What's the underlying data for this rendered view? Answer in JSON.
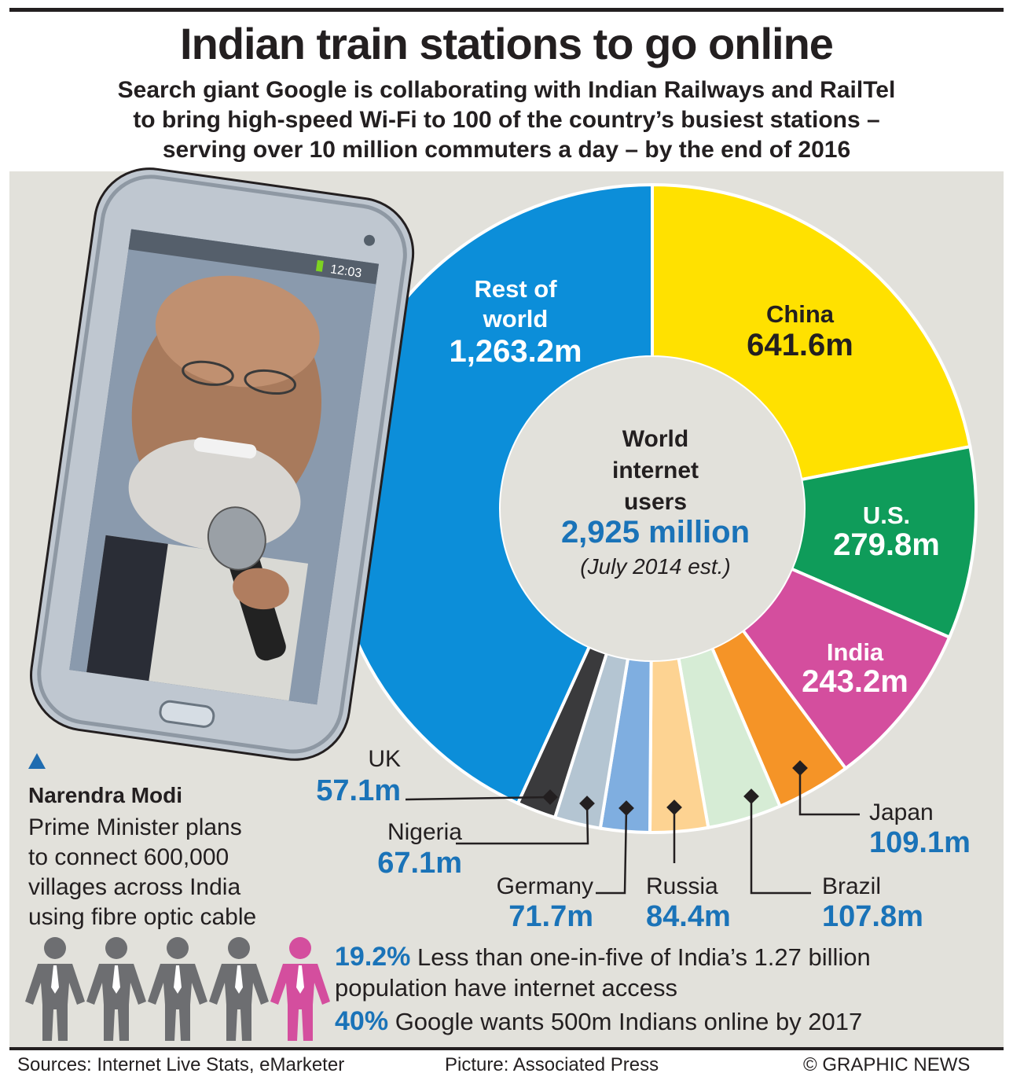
{
  "title": "Indian train stations to go online",
  "subtitle": [
    "Search giant Google is collaborating with Indian Railways and RailTel",
    "to bring high-speed Wi-Fi to 100 of the country’s busiest stations –",
    "serving over 10 million commuters a day – by the end of 2016"
  ],
  "phone": {
    "clock": "12:03"
  },
  "chart_data": {
    "type": "pie",
    "center_label": [
      "World",
      "internet",
      "users"
    ],
    "center_total": "2,925 million",
    "center_note": "(July 2014 est.)",
    "total": 2925,
    "slices": [
      {
        "name": "China",
        "value": 641.6,
        "label": "641.6m",
        "color": "#ffe100"
      },
      {
        "name": "U.S.",
        "value": 279.8,
        "label": "279.8m",
        "color": "#0f9c5a"
      },
      {
        "name": "India",
        "value": 243.2,
        "label": "243.2m",
        "color": "#d44e9e"
      },
      {
        "name": "Japan",
        "value": 109.1,
        "label": "109.1m",
        "color": "#f59427"
      },
      {
        "name": "Brazil",
        "value": 107.8,
        "label": "107.8m",
        "color": "#d6ecd5"
      },
      {
        "name": "Russia",
        "value": 84.4,
        "label": "84.4m",
        "color": "#fdd392"
      },
      {
        "name": "Germany",
        "value": 71.7,
        "label": "71.7m",
        "color": "#7faee0"
      },
      {
        "name": "Nigeria",
        "value": 67.1,
        "label": "67.1m",
        "color": "#b4c5d2"
      },
      {
        "name": "UK",
        "value": 57.1,
        "label": "57.1m",
        "color": "#3a3a3c"
      },
      {
        "name": "Rest of world",
        "value": 1263.2,
        "label": "1,263.2m",
        "color": "#0c8ed9"
      }
    ]
  },
  "labels": {
    "rest": [
      "Rest of",
      "world"
    ],
    "china": "China",
    "us": "U.S.",
    "india": "India",
    "uk": "UK",
    "nigeria": "Nigeria",
    "germany": "Germany",
    "russia": "Russia",
    "brazil": "Brazil",
    "japan": "Japan"
  },
  "modi": {
    "name": "Narendra Modi",
    "desc": [
      "Prime Minister plans",
      "to connect 600,000",
      "villages across India",
      "using fibre optic cable"
    ]
  },
  "stats": [
    {
      "pct": "19.2%",
      "text": "Less than one-in-five of India’s 1.27 billion",
      "text2": "population have internet access"
    },
    {
      "pct": "40%",
      "text": "Google wants 500m Indians online by 2017"
    }
  ],
  "people": {
    "total": 5,
    "highlighted": 1,
    "gray": "#6d6e71",
    "pink": "#d44e9e"
  },
  "footer": {
    "sources": "Sources: Internet Live Stats, eMarketer",
    "picture": "Picture: Associated Press",
    "credit": "© GRAPHIC NEWS"
  }
}
